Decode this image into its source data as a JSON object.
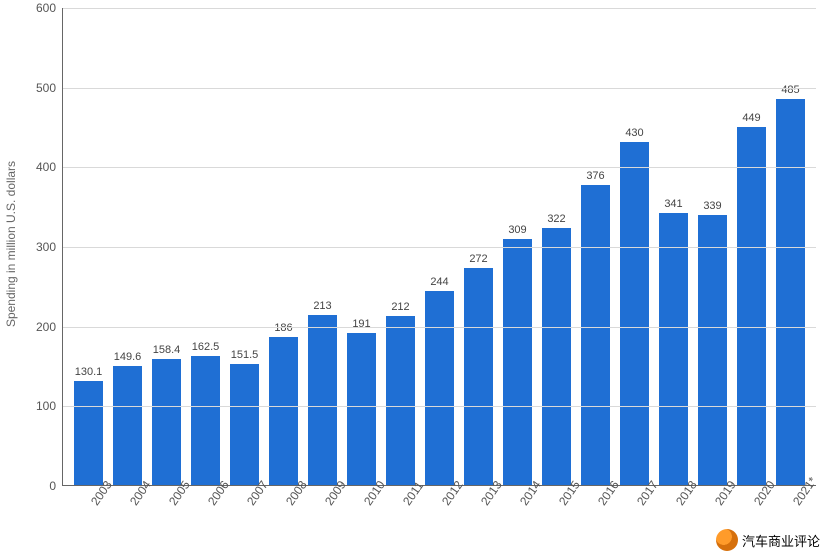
{
  "chart": {
    "type": "bar",
    "ylabel": "Spending in million U.S. dollars",
    "ylim": [
      0,
      600
    ],
    "ytick_step": 100,
    "bar_color": "#1f6fd4",
    "grid_color": "#d9d9d9",
    "axis_color": "#666666",
    "background_color": "#ffffff",
    "label_fontsize": 12,
    "value_fontsize": 11,
    "bar_width": 0.76,
    "categories": [
      "2003",
      "2004",
      "2005",
      "2006",
      "2007",
      "2008",
      "2009",
      "2010",
      "2011",
      "2012",
      "2013",
      "2014",
      "2015",
      "2016",
      "2017",
      "2018",
      "2019",
      "2020",
      "2021*"
    ],
    "values": [
      130.1,
      149.6,
      158.4,
      162.5,
      151.5,
      186,
      213,
      191,
      212,
      244,
      272,
      309,
      322,
      376,
      430,
      341,
      339,
      449,
      485
    ]
  },
  "watermark": {
    "text": "汽车商业评论"
  }
}
